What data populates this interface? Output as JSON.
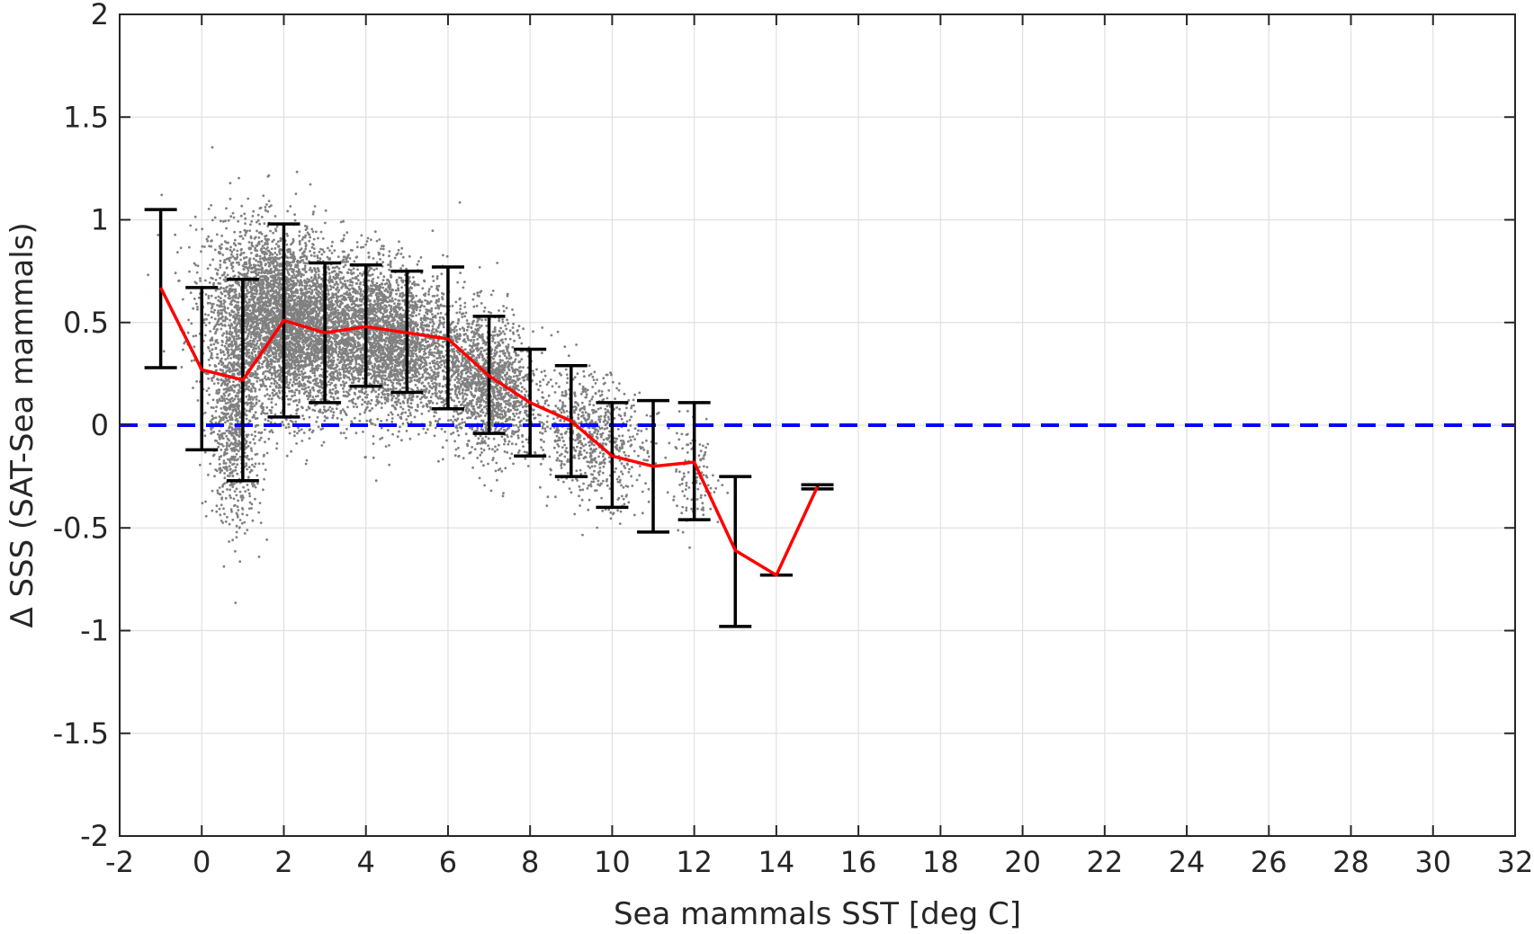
{
  "chart_data": {
    "type": "scatter",
    "xlabel": "Sea mammals SST [deg C]",
    "ylabel": "Δ SSS (SAT-Sea mammals)",
    "xlim": [
      -2,
      32
    ],
    "ylim": [
      -2,
      2
    ],
    "x_ticks": [
      -2,
      0,
      2,
      4,
      6,
      8,
      10,
      12,
      14,
      16,
      18,
      20,
      22,
      24,
      26,
      28,
      30,
      32
    ],
    "y_ticks": [
      -2,
      -1.5,
      -1,
      -0.5,
      0,
      0.5,
      1,
      1.5,
      2
    ],
    "x_tick_labels": [
      "-2",
      "0",
      "2",
      "4",
      "6",
      "8",
      "10",
      "12",
      "14",
      "16",
      "18",
      "20",
      "22",
      "24",
      "26",
      "28",
      "30",
      "32"
    ],
    "y_tick_labels": [
      "-2",
      "-1.5",
      "-1",
      "-0.5",
      "0",
      "0.5",
      "1",
      "1.5",
      "2"
    ],
    "grid": true,
    "colors": {
      "scatter": "#808080",
      "mean_line": "#ff0000",
      "error_bars": "#000000",
      "zero_line": "#0000ff",
      "grid": "#e0e0e0",
      "axes": "#262626"
    },
    "reference_line": {
      "y": 0,
      "style": "dashed"
    },
    "series": [
      {
        "type": "line",
        "x": [
          -1,
          0,
          1,
          2,
          3,
          4,
          5,
          6,
          7,
          8,
          9,
          10,
          11,
          12,
          13,
          14,
          15
        ],
        "y": [
          0.67,
          0.27,
          0.22,
          0.51,
          0.45,
          0.48,
          0.45,
          0.42,
          0.24,
          0.11,
          0.02,
          -0.15,
          -0.2,
          -0.18,
          -0.61,
          -0.73,
          -0.3
        ]
      },
      {
        "type": "errorbar",
        "x": [
          -1,
          0,
          1,
          2,
          3,
          4,
          5,
          6,
          7,
          8,
          9,
          10,
          11,
          12,
          13,
          14,
          15
        ],
        "lower": [
          0.28,
          -0.12,
          -0.27,
          0.04,
          0.11,
          0.19,
          0.16,
          0.08,
          -0.04,
          -0.15,
          -0.25,
          -0.4,
          -0.52,
          -0.46,
          -0.98,
          -0.73,
          -0.31
        ],
        "upper": [
          1.05,
          0.67,
          0.71,
          0.98,
          0.79,
          0.78,
          0.75,
          0.77,
          0.53,
          0.37,
          0.29,
          0.11,
          0.12,
          0.11,
          -0.25,
          -0.73,
          -0.29
        ]
      },
      {
        "type": "scatter",
        "description_clusters": [
          {
            "x_center": 2.0,
            "x_spread": 1.6,
            "y_center": 0.5,
            "y_spread": 0.35,
            "n": 4200
          },
          {
            "x_center": 4.5,
            "x_spread": 1.7,
            "y_center": 0.42,
            "y_spread": 0.3,
            "n": 3200
          },
          {
            "x_center": 7.0,
            "x_spread": 1.0,
            "y_center": 0.2,
            "y_spread": 0.28,
            "n": 1400
          },
          {
            "x_center": 9.5,
            "x_spread": 1.2,
            "y_center": -0.05,
            "y_spread": 0.25,
            "n": 700
          },
          {
            "x_center": 0.8,
            "x_spread": 0.6,
            "y_center": 0.05,
            "y_spread": 0.45,
            "n": 900
          },
          {
            "x_center": 12.0,
            "x_spread": 0.6,
            "y_center": -0.25,
            "y_spread": 0.2,
            "n": 120
          }
        ]
      }
    ]
  }
}
